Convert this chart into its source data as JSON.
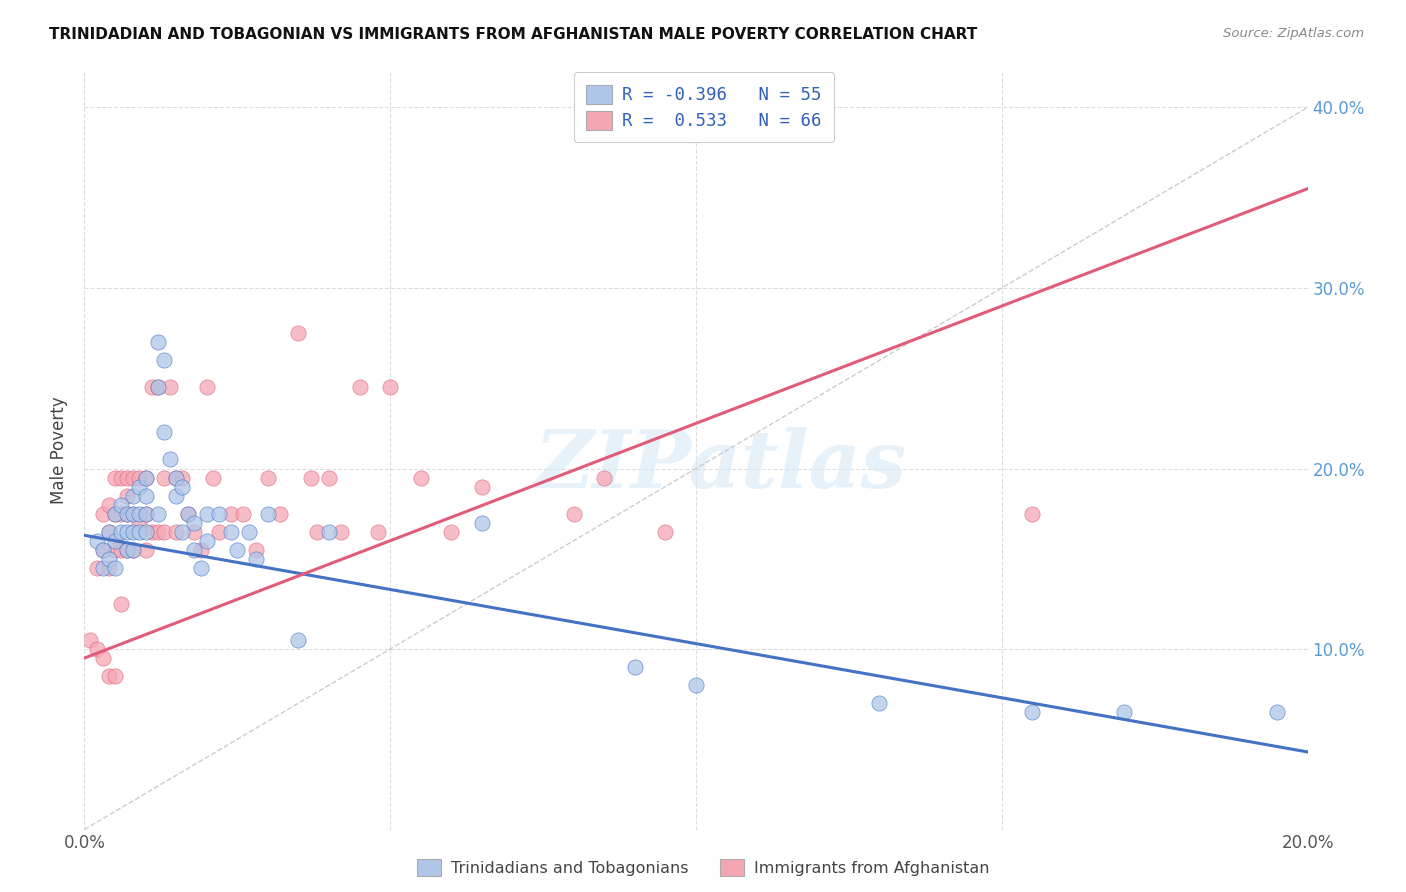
{
  "title": "TRINIDADIAN AND TOBAGONIAN VS IMMIGRANTS FROM AFGHANISTAN MALE POVERTY CORRELATION CHART",
  "source": "Source: ZipAtlas.com",
  "ylabel": "Male Poverty",
  "xmin": 0.0,
  "xmax": 0.2,
  "ymin": 0.0,
  "ymax": 0.42,
  "color_blue": "#AEC6E8",
  "color_pink": "#F4A7B3",
  "line_blue": "#4472C4",
  "line_pink": "#E05C7A",
  "watermark": "ZIPatlas",
  "legend_entry1": "R = -0.396   N = 55",
  "legend_entry2": "R =  0.533   N = 66",
  "blue_line_x0": 0.0,
  "blue_line_y0": 0.163,
  "blue_line_x1": 0.2,
  "blue_line_y1": 0.043,
  "pink_line_x0": 0.0,
  "pink_line_y0": 0.095,
  "pink_line_x1": 0.2,
  "pink_line_y1": 0.355,
  "diag_color": "#CCCCCC",
  "blue_scatter_x": [
    0.002,
    0.003,
    0.003,
    0.004,
    0.004,
    0.005,
    0.005,
    0.005,
    0.006,
    0.006,
    0.007,
    0.007,
    0.007,
    0.008,
    0.008,
    0.008,
    0.008,
    0.009,
    0.009,
    0.009,
    0.01,
    0.01,
    0.01,
    0.01,
    0.012,
    0.012,
    0.012,
    0.013,
    0.013,
    0.014,
    0.015,
    0.015,
    0.016,
    0.016,
    0.017,
    0.018,
    0.018,
    0.019,
    0.02,
    0.02,
    0.022,
    0.024,
    0.025,
    0.027,
    0.028,
    0.03,
    0.035,
    0.04,
    0.065,
    0.09,
    0.1,
    0.13,
    0.155,
    0.17,
    0.195
  ],
  "blue_scatter_y": [
    0.16,
    0.155,
    0.145,
    0.165,
    0.15,
    0.175,
    0.16,
    0.145,
    0.18,
    0.165,
    0.175,
    0.165,
    0.155,
    0.185,
    0.175,
    0.165,
    0.155,
    0.19,
    0.175,
    0.165,
    0.195,
    0.185,
    0.175,
    0.165,
    0.27,
    0.245,
    0.175,
    0.26,
    0.22,
    0.205,
    0.195,
    0.185,
    0.19,
    0.165,
    0.175,
    0.17,
    0.155,
    0.145,
    0.175,
    0.16,
    0.175,
    0.165,
    0.155,
    0.165,
    0.15,
    0.175,
    0.105,
    0.165,
    0.17,
    0.09,
    0.08,
    0.07,
    0.065,
    0.065,
    0.065
  ],
  "pink_scatter_x": [
    0.001,
    0.002,
    0.002,
    0.003,
    0.003,
    0.003,
    0.004,
    0.004,
    0.004,
    0.004,
    0.005,
    0.005,
    0.005,
    0.005,
    0.006,
    0.006,
    0.006,
    0.006,
    0.007,
    0.007,
    0.007,
    0.007,
    0.008,
    0.008,
    0.008,
    0.009,
    0.009,
    0.01,
    0.01,
    0.01,
    0.011,
    0.011,
    0.012,
    0.012,
    0.013,
    0.013,
    0.014,
    0.015,
    0.015,
    0.016,
    0.017,
    0.018,
    0.019,
    0.02,
    0.021,
    0.022,
    0.024,
    0.026,
    0.028,
    0.03,
    0.032,
    0.035,
    0.037,
    0.038,
    0.04,
    0.042,
    0.045,
    0.048,
    0.05,
    0.055,
    0.06,
    0.065,
    0.08,
    0.085,
    0.095,
    0.155
  ],
  "pink_scatter_y": [
    0.105,
    0.145,
    0.1,
    0.175,
    0.155,
    0.095,
    0.18,
    0.165,
    0.145,
    0.085,
    0.195,
    0.175,
    0.155,
    0.085,
    0.195,
    0.175,
    0.155,
    0.125,
    0.195,
    0.185,
    0.175,
    0.155,
    0.195,
    0.175,
    0.155,
    0.195,
    0.17,
    0.195,
    0.175,
    0.155,
    0.245,
    0.165,
    0.245,
    0.165,
    0.195,
    0.165,
    0.245,
    0.195,
    0.165,
    0.195,
    0.175,
    0.165,
    0.155,
    0.245,
    0.195,
    0.165,
    0.175,
    0.175,
    0.155,
    0.195,
    0.175,
    0.275,
    0.195,
    0.165,
    0.195,
    0.165,
    0.245,
    0.165,
    0.245,
    0.195,
    0.165,
    0.19,
    0.175,
    0.195,
    0.165,
    0.175
  ]
}
